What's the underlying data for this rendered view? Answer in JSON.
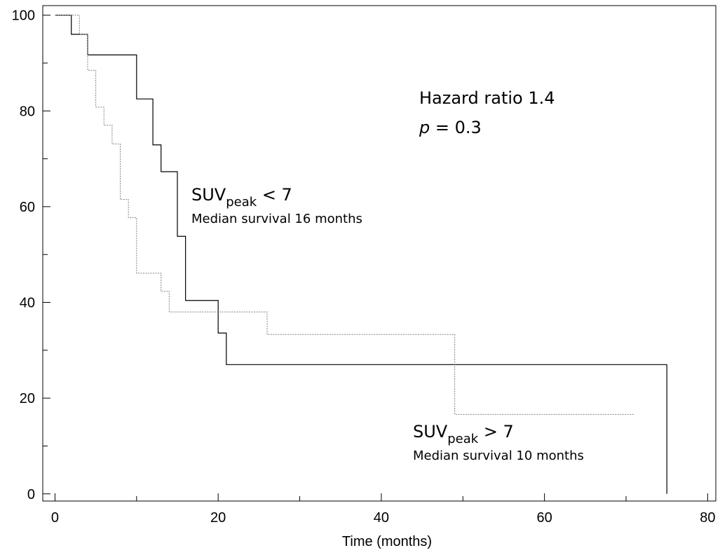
{
  "chart_data": {
    "type": "line",
    "xlabel": "Time (months)",
    "ylabel": "",
    "xlim": [
      -1.5,
      81
    ],
    "ylim": [
      -1.5,
      102
    ],
    "x_ticks_major": [
      0,
      20,
      40,
      60,
      80
    ],
    "x_ticks_minor": [
      10,
      30,
      50,
      70
    ],
    "y_ticks_major": [
      0,
      20,
      40,
      60,
      80,
      100
    ],
    "y_ticks_minor": [
      10,
      30,
      50,
      70,
      90
    ],
    "x_tick_labels": [
      "0",
      "20",
      "40",
      "60",
      "80"
    ],
    "y_tick_labels": [
      "0",
      "20",
      "40",
      "60",
      "80",
      "100"
    ],
    "grid": false,
    "series": [
      {
        "name": "SUVpeak < 7",
        "style": "solid",
        "color": "#000000",
        "points": [
          [
            0,
            100
          ],
          [
            2,
            96
          ],
          [
            4,
            91.7
          ],
          [
            10,
            82.5
          ],
          [
            12,
            72.9
          ],
          [
            13,
            67.3
          ],
          [
            15,
            53.8
          ],
          [
            16,
            40.4
          ],
          [
            20,
            33.6
          ],
          [
            21,
            27
          ],
          [
            75,
            0
          ]
        ],
        "end_x": 75
      },
      {
        "name": "SUVpeak > 7",
        "style": "dashed",
        "color": "#808080",
        "points": [
          [
            0,
            100
          ],
          [
            3,
            96
          ],
          [
            4,
            88.5
          ],
          [
            5,
            80.8
          ],
          [
            6,
            77
          ],
          [
            7,
            73.1
          ],
          [
            8,
            61.5
          ],
          [
            9,
            57.7
          ],
          [
            10,
            46.1
          ],
          [
            13,
            42.3
          ],
          [
            14,
            38
          ],
          [
            26,
            33.3
          ],
          [
            49,
            16.6
          ]
        ],
        "end_x": 71
      }
    ],
    "annotations": {
      "hazard": "Hazard ratio 1.4",
      "p_italic": "p",
      "p_rest": " = 0.3",
      "group_low": {
        "main": "SUV",
        "sub": "peak",
        "rest": " < 7",
        "median": "Median survival 16 months"
      },
      "group_high": {
        "main": "SUV",
        "sub": "peak",
        "rest": " > 7",
        "median": "Median survival 10 months"
      }
    }
  }
}
